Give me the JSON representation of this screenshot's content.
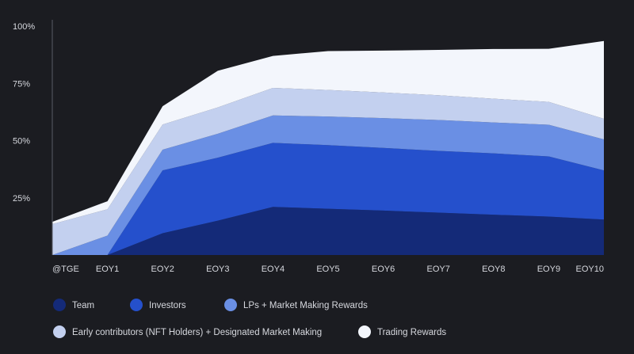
{
  "chart_data": {
    "type": "area",
    "stacked": true,
    "title": "",
    "xlabel": "",
    "ylabel": "",
    "ylim": [
      0,
      100
    ],
    "y_ticks": [
      "25%",
      "50%",
      "75%",
      "100%"
    ],
    "y_tick_values": [
      25,
      50,
      75,
      100
    ],
    "grid": false,
    "legend_position": "bottom",
    "categories": [
      "@TGE",
      "EOY1",
      "EOY2",
      "EOY3",
      "EOY4",
      "EOY5",
      "EOY6",
      "EOY7",
      "EOY8",
      "EOY9",
      "EOY10"
    ],
    "series": [
      {
        "name": "Team",
        "color": "#142a78",
        "values": [
          0,
          0,
          9.5,
          15,
          21,
          20.2,
          19.4,
          18.5,
          17.6,
          16.8,
          15.5
        ]
      },
      {
        "name": "Investors",
        "color": "#2550cc",
        "values": [
          0,
          0,
          27.5,
          27.5,
          28,
          27.8,
          27.4,
          27,
          26.8,
          26.3,
          21.5
        ]
      },
      {
        "name": "LPs + Market Making Rewards",
        "color": "#6a8fe4",
        "values": [
          0,
          8.5,
          9,
          10.5,
          12,
          12.5,
          13,
          13.5,
          13.5,
          13.8,
          13.5
        ]
      },
      {
        "name": "Early contributors (NFT Holders) + Designated Market Making",
        "color": "#c3d0ef",
        "values": [
          13.5,
          11.5,
          11,
          11.5,
          12,
          11.6,
          11.2,
          10.8,
          10.4,
          10,
          9
        ]
      },
      {
        "name": "Trading Rewards",
        "color": "#f3f6fc",
        "values": [
          1,
          3.5,
          8,
          16,
          14,
          17,
          18.3,
          19.8,
          21.7,
          23.2,
          34
        ]
      }
    ]
  }
}
